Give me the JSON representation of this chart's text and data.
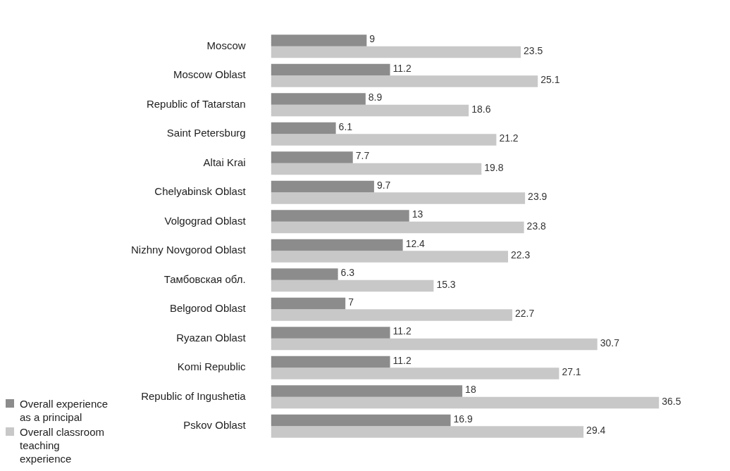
{
  "chart_data": {
    "type": "bar",
    "orientation": "horizontal",
    "categories": [
      "Moscow",
      "Moscow Oblast",
      "Republic of Tatarstan",
      "Saint Petersburg",
      "Altai Krai",
      "Chelyabinsk Oblast",
      "Volgograd Oblast",
      "Nizhny Novgorod Oblast",
      "Тамбовская обл.",
      "Belgorod Oblast",
      "Ryazan Oblast",
      "Komi Republic",
      "Republic of Ingushetia",
      "Pskov Oblast"
    ],
    "series": [
      {
        "name": "Overall experience as a principal",
        "color": "#8c8c8c",
        "values": [
          9,
          11.2,
          8.9,
          6.1,
          7.7,
          9.7,
          13,
          12.4,
          6.3,
          7,
          11.2,
          11.2,
          18,
          16.9
        ]
      },
      {
        "name": "Overall classroom teaching experience",
        "color": "#c8c8c8",
        "values": [
          23.5,
          25.1,
          18.6,
          21.2,
          19.8,
          23.9,
          23.8,
          22.3,
          15.3,
          22.7,
          30.7,
          27.1,
          36.5,
          29.4
        ]
      }
    ],
    "data_labels": true,
    "legend": "bottom left"
  }
}
